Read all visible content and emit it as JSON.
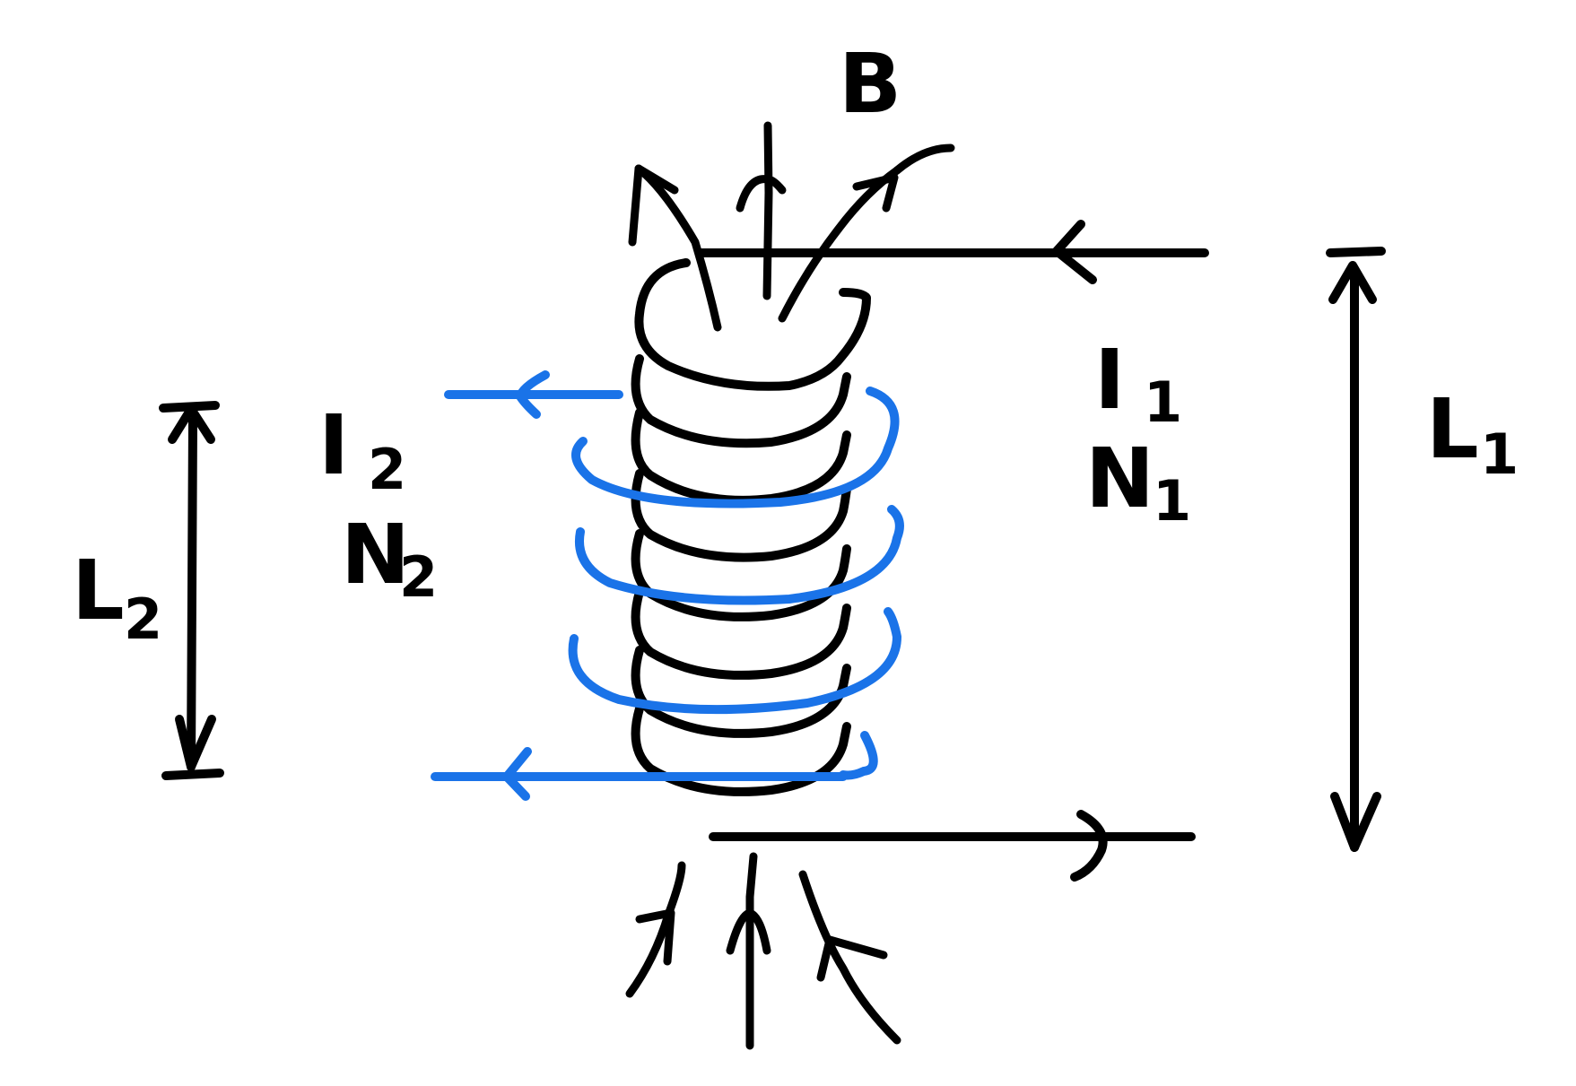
{
  "colors": {
    "ink": "#000000",
    "secondary": "#1a73e8",
    "background": "#ffffff"
  },
  "labels": {
    "field": "B",
    "primary_current": "I",
    "primary_current_sub": "1",
    "primary_turns": "N",
    "primary_turns_sub": "1",
    "primary_length": "L",
    "primary_length_sub": "1",
    "secondary_current": "I",
    "secondary_current_sub": "2",
    "secondary_turns": "N",
    "secondary_turns_sub": "2",
    "secondary_length": "L",
    "secondary_length_sub": "2"
  }
}
